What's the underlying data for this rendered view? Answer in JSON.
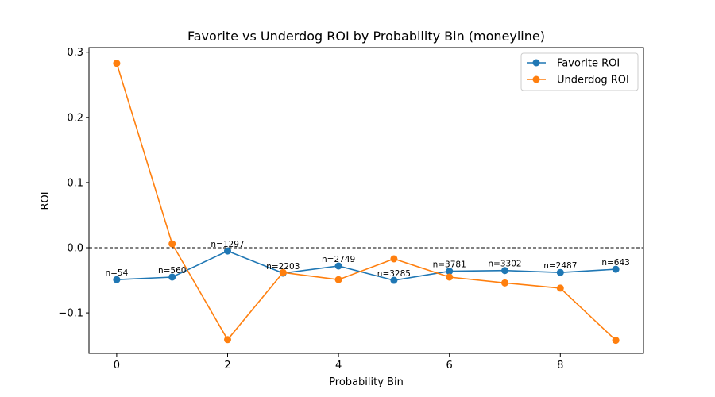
{
  "chart_data": {
    "type": "line",
    "title": "Favorite vs Underdog ROI by Probability Bin (moneyline)",
    "xlabel": "Probability Bin",
    "ylabel": "ROI",
    "xlim": [
      -0.5,
      9.5
    ],
    "ylim": [
      -0.162,
      0.307
    ],
    "x_ticks": [
      0,
      2,
      4,
      6,
      8
    ],
    "y_ticks": [
      -0.1,
      0.0,
      0.1,
      0.2,
      0.3
    ],
    "y_tick_labels": [
      "−0.1",
      "0.0",
      "0.1",
      "0.2",
      "0.3"
    ],
    "grid": false,
    "legend_position": "top-right",
    "reference_line": {
      "y": 0.0,
      "style": "dashed",
      "color": "#000000"
    },
    "x": [
      0,
      1,
      2,
      3,
      4,
      5,
      6,
      7,
      8,
      9
    ],
    "series": [
      {
        "name": "Favorite ROI",
        "color": "#1f77b4",
        "values": [
          -0.049,
          -0.045,
          -0.005,
          -0.039,
          -0.028,
          -0.05,
          -0.036,
          -0.035,
          -0.038,
          -0.033
        ]
      },
      {
        "name": "Underdog ROI",
        "color": "#ff7f0e",
        "values": [
          0.283,
          0.006,
          -0.141,
          -0.038,
          -0.049,
          -0.017,
          -0.045,
          -0.054,
          -0.062,
          -0.142
        ]
      }
    ],
    "annotations": [
      "n=54",
      "n=560",
      "n=1297",
      "n=2203",
      "n=2749",
      "n=3285",
      "n=3781",
      "n=3302",
      "n=2487",
      "n=643"
    ]
  }
}
